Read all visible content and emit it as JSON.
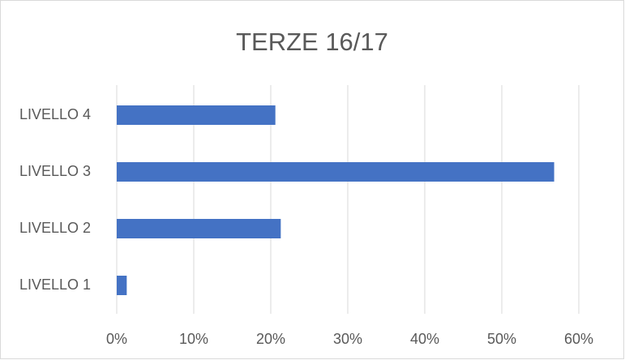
{
  "chart_data": {
    "type": "bar",
    "orientation": "horizontal",
    "title": "TERZE 16/17",
    "categories": [
      "LIVELLO 1",
      "LIVELLO 2",
      "LIVELLO 3",
      "LIVELLO 4"
    ],
    "values": [
      1.3,
      21.3,
      56.8,
      20.6
    ],
    "color": "#4472c4",
    "xlim": [
      0,
      60
    ],
    "xticks": [
      {
        "value": 0,
        "label": "0%"
      },
      {
        "value": 10,
        "label": "10%"
      },
      {
        "value": 20,
        "label": "20%"
      },
      {
        "value": 30,
        "label": "30%"
      },
      {
        "value": 40,
        "label": "40%"
      },
      {
        "value": 50,
        "label": "50%"
      },
      {
        "value": 60,
        "label": "60%"
      }
    ],
    "grid": true
  }
}
